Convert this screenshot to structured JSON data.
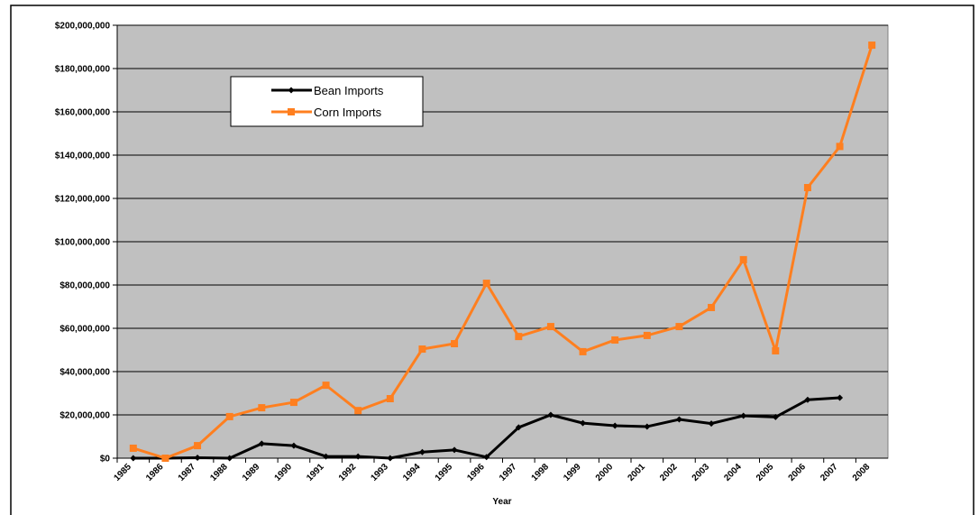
{
  "chart_data": {
    "type": "line",
    "x_label": "Year",
    "categories": [
      "1985",
      "1986",
      "1987",
      "1988",
      "1989",
      "1990",
      "1991",
      "1992",
      "1993",
      "1994",
      "1995",
      "1996",
      "1997",
      "1998",
      "1999",
      "2000",
      "2001",
      "2002",
      "2003",
      "2004",
      "2005",
      "2006",
      "2007",
      "2008"
    ],
    "series": [
      {
        "name": "Bean Imports",
        "color": "#000000",
        "marker": "diamond",
        "values": [
          0,
          0,
          200000,
          0,
          6700000,
          5800000,
          800000,
          800000,
          0,
          2800000,
          3800000,
          500000,
          14200000,
          20000000,
          16200000,
          15000000,
          14600000,
          17900000,
          16000000,
          19600000,
          19000000,
          27000000,
          27900000,
          null
        ]
      },
      {
        "name": "Corn Imports",
        "color": "#ff7f1f",
        "marker": "square",
        "values": [
          4600000,
          0,
          5800000,
          19200000,
          23300000,
          25800000,
          33700000,
          22000000,
          27500000,
          50400000,
          52900000,
          80800000,
          56200000,
          60800000,
          49200000,
          54600000,
          56700000,
          60800000,
          69600000,
          91700000,
          49600000,
          125000000,
          144000000,
          190800000
        ]
      }
    ],
    "ylim": [
      0,
      200000000
    ],
    "yticks": [
      {
        "value": 0,
        "label": "$0"
      },
      {
        "value": 20000000,
        "label": "$20,000,000"
      },
      {
        "value": 40000000,
        "label": "$40,000,000"
      },
      {
        "value": 60000000,
        "label": "$60,000,000"
      },
      {
        "value": 80000000,
        "label": "$80,000,000"
      },
      {
        "value": 100000000,
        "label": "$100,000,000"
      },
      {
        "value": 120000000,
        "label": "$120,000,000"
      },
      {
        "value": 140000000,
        "label": "$140,000,000"
      },
      {
        "value": 160000000,
        "label": "$160,000,000"
      },
      {
        "value": 180000000,
        "label": "$180,000,000"
      },
      {
        "value": 200000000,
        "label": "$200,000,000"
      }
    ],
    "grid": true,
    "legend": "upper left"
  }
}
